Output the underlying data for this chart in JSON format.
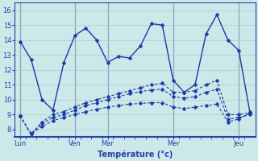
{
  "title": "Température (°c)",
  "bg_color": "#cce8e8",
  "line_color": "#1a3aaa",
  "grid_color": "#aacccc",
  "axis_label_color": "#2244aa",
  "tick_color": "#2244aa",
  "ylim": [
    7.5,
    16.5
  ],
  "yticks": [
    8,
    9,
    10,
    11,
    12,
    13,
    14,
    15,
    16
  ],
  "day_labels": [
    "Lun",
    "Ven",
    "Mar",
    "Mer",
    "Jeu"
  ],
  "series1_x": [
    0,
    1,
    2,
    3,
    4,
    5,
    6,
    7,
    8,
    9,
    10,
    11,
    12,
    13,
    14,
    15,
    16,
    17,
    18,
    19,
    20,
    21
  ],
  "series1_y": [
    13.9,
    12.7,
    10.0,
    9.3,
    12.5,
    14.3,
    14.8,
    14.0,
    12.5,
    12.9,
    12.8,
    13.6,
    15.1,
    15.0,
    11.3,
    10.5,
    11.0,
    14.4,
    15.7,
    14.0,
    13.3,
    9.2
  ],
  "series2_x": [
    0,
    1,
    2,
    3,
    4,
    5,
    6,
    7,
    8,
    9,
    10,
    11,
    12,
    13,
    14,
    15,
    16,
    17,
    18,
    19,
    20,
    21
  ],
  "series2_y": [
    8.9,
    7.7,
    8.5,
    9.0,
    9.2,
    9.5,
    9.8,
    10.0,
    10.2,
    10.4,
    10.6,
    10.8,
    11.0,
    11.1,
    10.5,
    10.5,
    10.6,
    11.0,
    11.3,
    9.0,
    9.0,
    9.1
  ],
  "series3_x": [
    0,
    1,
    2,
    3,
    4,
    5,
    6,
    7,
    8,
    9,
    10,
    11,
    12,
    13,
    14,
    15,
    16,
    17,
    18,
    19,
    20,
    21
  ],
  "series3_y": [
    8.9,
    7.7,
    8.4,
    8.8,
    9.0,
    9.3,
    9.6,
    9.8,
    10.0,
    10.2,
    10.4,
    10.55,
    10.65,
    10.7,
    10.2,
    10.1,
    10.2,
    10.5,
    10.7,
    8.7,
    8.8,
    9.0
  ],
  "series4_x": [
    0,
    1,
    2,
    3,
    4,
    5,
    6,
    7,
    8,
    9,
    10,
    11,
    12,
    13,
    14,
    15,
    16,
    17,
    18,
    19,
    20,
    21
  ],
  "series4_y": [
    8.9,
    7.7,
    8.2,
    8.6,
    8.8,
    9.0,
    9.2,
    9.35,
    9.5,
    9.6,
    9.7,
    9.75,
    9.8,
    9.8,
    9.5,
    9.4,
    9.5,
    9.6,
    9.7,
    8.5,
    8.7,
    9.1
  ],
  "day_x_positions": [
    0,
    5,
    8,
    14,
    20
  ],
  "n_points": 22,
  "xmax": 21
}
